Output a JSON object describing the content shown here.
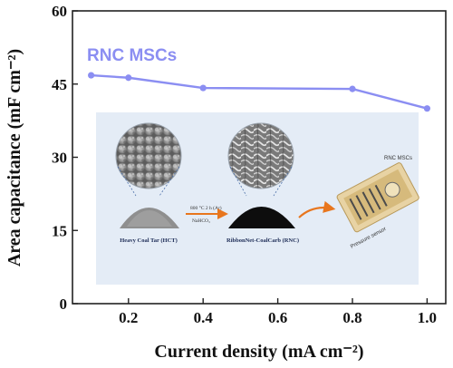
{
  "chart_data": {
    "type": "line",
    "x": [
      0.1,
      0.2,
      0.4,
      0.8,
      1.0
    ],
    "series": [
      {
        "name": "RNC MSCs",
        "values": [
          46.8,
          46.3,
          44.2,
          44.0,
          40.0
        ],
        "color": "#8b8ef2"
      }
    ],
    "xlabel": "Current density (mA cm⁻²)",
    "ylabel": "Area capacitance (mF cm⁻²)",
    "xlim": [
      0.05,
      1.05
    ],
    "ylim": [
      0,
      60
    ],
    "x_ticks": [
      0.2,
      0.4,
      0.6,
      0.8,
      1.0
    ],
    "y_ticks": [
      0,
      15,
      30,
      45,
      60
    ],
    "x_tick_labels": [
      "0.2",
      "0.4",
      "0.6",
      "0.8",
      "1.0"
    ],
    "y_tick_labels": [
      "0",
      "15",
      "30",
      "45",
      "60"
    ],
    "grid": false,
    "legend_placement": "top-left"
  },
  "inset": {
    "label_hct": "Heavy Coal Tar (HCT)",
    "label_rnc": "RibbonNet-CoalCarb (RNC)",
    "arrow_condition": "800 °C 2 h (Ar)",
    "arrow_reagent": "NaHCO₃",
    "device_label": "RNC MSCs",
    "device_sublabel": "Pressure sensor"
  },
  "colors": {
    "series": "#8b8ef2",
    "axis": "#222222",
    "inset_bg": "#e4ecf6",
    "arrow": "#e8761e"
  }
}
